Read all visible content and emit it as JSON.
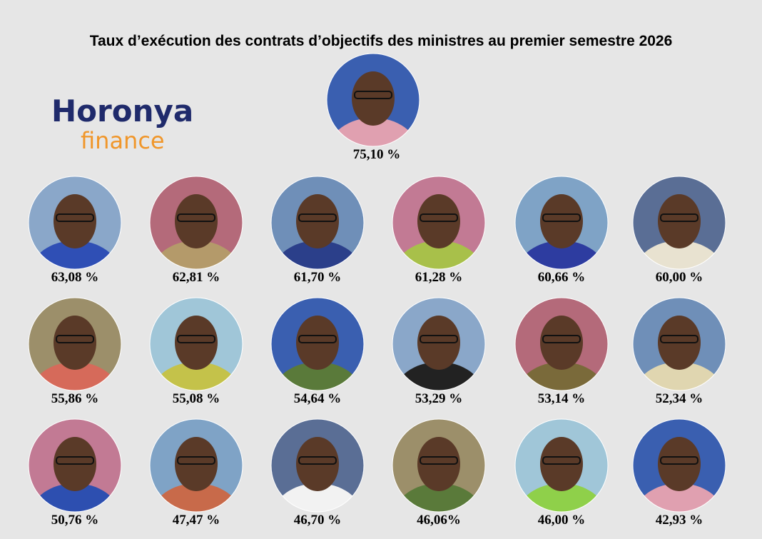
{
  "header": {
    "title": "Taux d’exécution des contrats d’objectifs des ministres au premier semestre 2026"
  },
  "logo": {
    "brand": "Horonya",
    "sub": "finance"
  },
  "ministers": [
    {
      "rate": "75,10 %"
    },
    {
      "rate": "63,08 %"
    },
    {
      "rate": "62,81 %"
    },
    {
      "rate": "61,70 %"
    },
    {
      "rate": "61,28 %"
    },
    {
      "rate": "60,66 %"
    },
    {
      "rate": "60,00 %"
    },
    {
      "rate": "55,86 %"
    },
    {
      "rate": "55,08 %"
    },
    {
      "rate": "54,64 %"
    },
    {
      "rate": "53,29 %"
    },
    {
      "rate": "53,14 %"
    },
    {
      "rate": "52,34 %"
    },
    {
      "rate": "50,76 %"
    },
    {
      "rate": "47,47 %"
    },
    {
      "rate": "46,70 %"
    },
    {
      "rate": "46,06%"
    },
    {
      "rate": "46,00 %"
    },
    {
      "rate": "42,93 %"
    }
  ]
}
